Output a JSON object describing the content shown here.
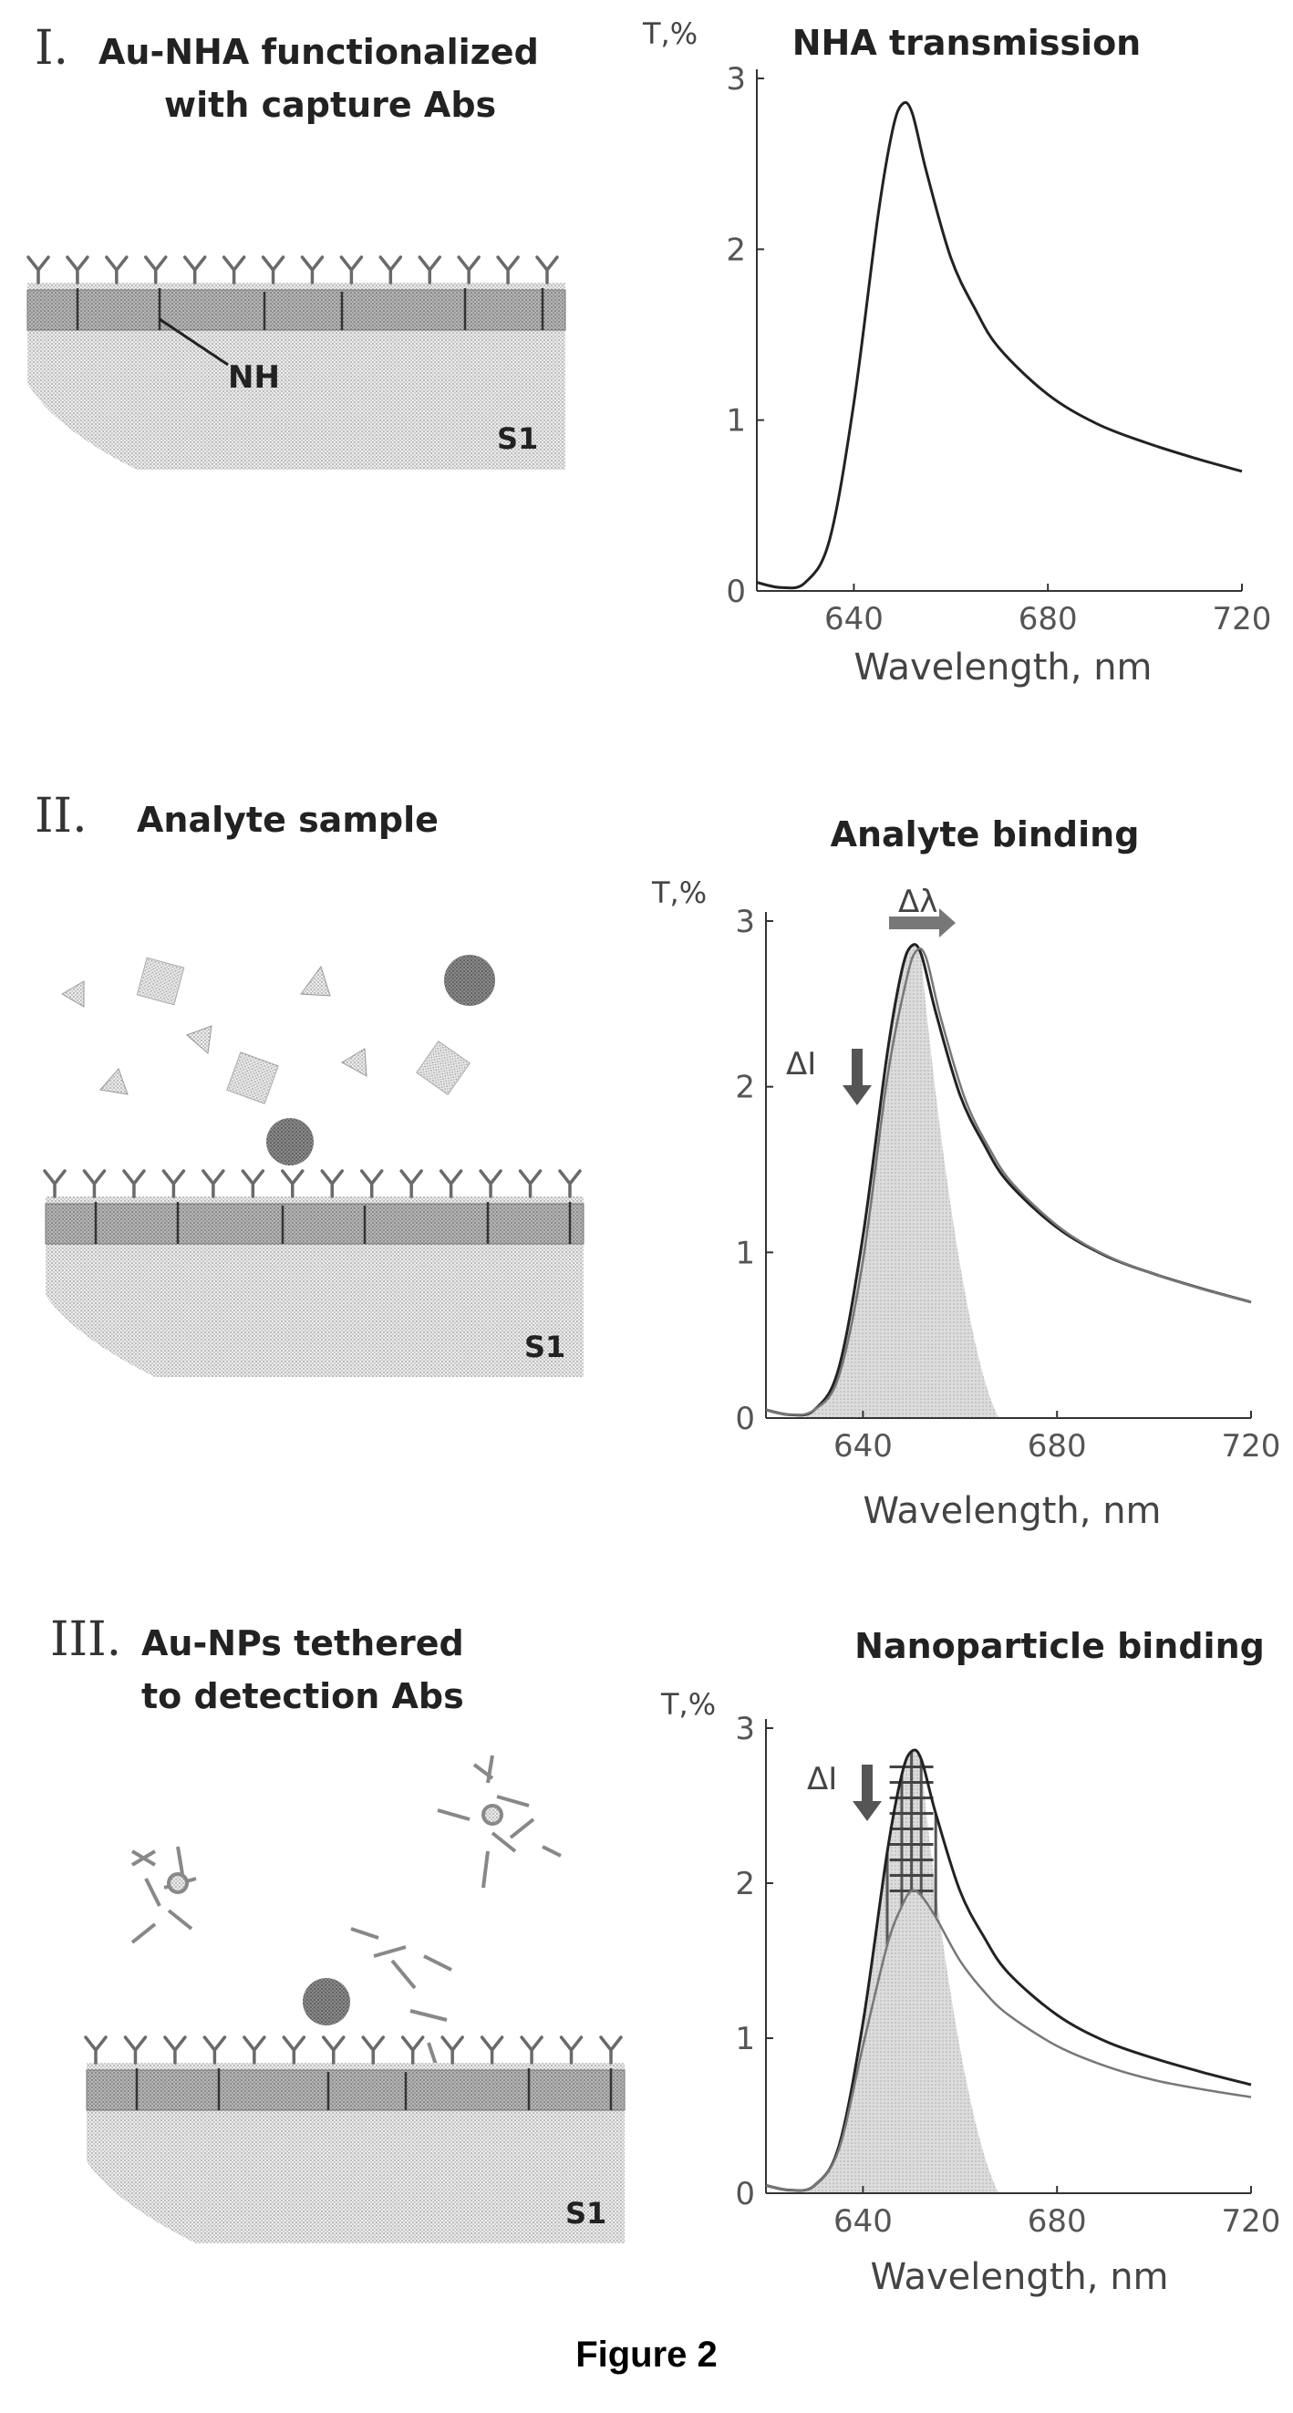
{
  "figure_caption": "Figure 2",
  "panels": [
    {
      "numeral": "I.",
      "title_lines": [
        "Au-NHA functionalized",
        "with capture Abs"
      ],
      "nh_label": "NH",
      "substrate_label": "S1",
      "chart_title": "NHA transmission",
      "y_label": "T,%",
      "x_label": "Wavelength, nm"
    },
    {
      "numeral": "II.",
      "title_lines": [
        "Analyte sample"
      ],
      "substrate_label": "S1",
      "chart_title": "Analyte binding",
      "y_label": "T,%",
      "x_label": "Wavelength, nm",
      "delta_lambda": "Δλ",
      "delta_i": "ΔI"
    },
    {
      "numeral": "III.",
      "title_lines": [
        "Au-NPs tethered",
        "to detection Abs"
      ],
      "substrate_label": "S1",
      "chart_title": "Nanoparticle binding",
      "y_label": "T,%",
      "x_label": "Wavelength, nm",
      "delta_i": "ΔI"
    }
  ],
  "chart_data": [
    {
      "type": "line",
      "title": "NHA transmission",
      "xlabel": "Wavelength, nm",
      "ylabel": "T,%",
      "xlim": [
        620,
        720
      ],
      "ylim": [
        0,
        3
      ],
      "x_ticks": [
        640,
        680,
        720
      ],
      "y_ticks": [
        0,
        1,
        2,
        3
      ],
      "series": [
        {
          "x": [
            620,
            625,
            630,
            635,
            640,
            645,
            648,
            650,
            652,
            655,
            660,
            665,
            670,
            680,
            690,
            700,
            710,
            720
          ],
          "y": [
            0.05,
            0.02,
            0.05,
            0.3,
            1.1,
            2.2,
            2.7,
            2.85,
            2.8,
            2.45,
            1.95,
            1.65,
            1.42,
            1.15,
            0.98,
            0.87,
            0.78,
            0.7
          ]
        }
      ]
    },
    {
      "type": "line",
      "title": "Analyte binding",
      "xlabel": "Wavelength, nm",
      "ylabel": "T,%",
      "xlim": [
        620,
        720
      ],
      "ylim": [
        0,
        3
      ],
      "x_ticks": [
        640,
        680,
        720
      ],
      "y_ticks": [
        0,
        1,
        2,
        3
      ],
      "series": [
        {
          "x": [
            620,
            625,
            630,
            635,
            640,
            645,
            648,
            650,
            652,
            655,
            660,
            665,
            670,
            680,
            690,
            700,
            710,
            720
          ],
          "y": [
            0.05,
            0.02,
            0.05,
            0.3,
            1.1,
            2.2,
            2.7,
            2.85,
            2.8,
            2.45,
            1.95,
            1.65,
            1.42,
            1.15,
            0.98,
            0.87,
            0.78,
            0.7
          ]
        },
        {
          "x": [
            620,
            625,
            630,
            635,
            640,
            645,
            649,
            651,
            653,
            656,
            661,
            666,
            671,
            681,
            691,
            701,
            711,
            720
          ],
          "y": [
            0.05,
            0.02,
            0.05,
            0.25,
            0.95,
            2.05,
            2.65,
            2.82,
            2.78,
            2.42,
            1.93,
            1.63,
            1.41,
            1.14,
            0.97,
            0.86,
            0.77,
            0.7
          ]
        }
      ]
    },
    {
      "type": "line",
      "title": "Nanoparticle binding",
      "xlabel": "Wavelength, nm",
      "ylabel": "T,%",
      "xlim": [
        620,
        720
      ],
      "ylim": [
        0,
        3
      ],
      "x_ticks": [
        640,
        680,
        720
      ],
      "y_ticks": [
        0,
        1,
        2,
        3
      ],
      "series": [
        {
          "x": [
            620,
            625,
            630,
            635,
            640,
            645,
            648,
            650,
            652,
            655,
            660,
            665,
            670,
            680,
            690,
            700,
            710,
            720
          ],
          "y": [
            0.05,
            0.02,
            0.05,
            0.3,
            1.1,
            2.2,
            2.7,
            2.85,
            2.8,
            2.45,
            1.95,
            1.65,
            1.42,
            1.15,
            0.98,
            0.87,
            0.78,
            0.7
          ]
        },
        {
          "x": [
            620,
            625,
            630,
            635,
            640,
            645,
            648,
            650,
            652,
            655,
            660,
            665,
            670,
            680,
            690,
            700,
            710,
            720
          ],
          "y": [
            0.05,
            0.02,
            0.05,
            0.28,
            0.95,
            1.6,
            1.85,
            1.95,
            1.92,
            1.78,
            1.5,
            1.3,
            1.15,
            0.95,
            0.82,
            0.73,
            0.67,
            0.62
          ]
        }
      ]
    }
  ]
}
